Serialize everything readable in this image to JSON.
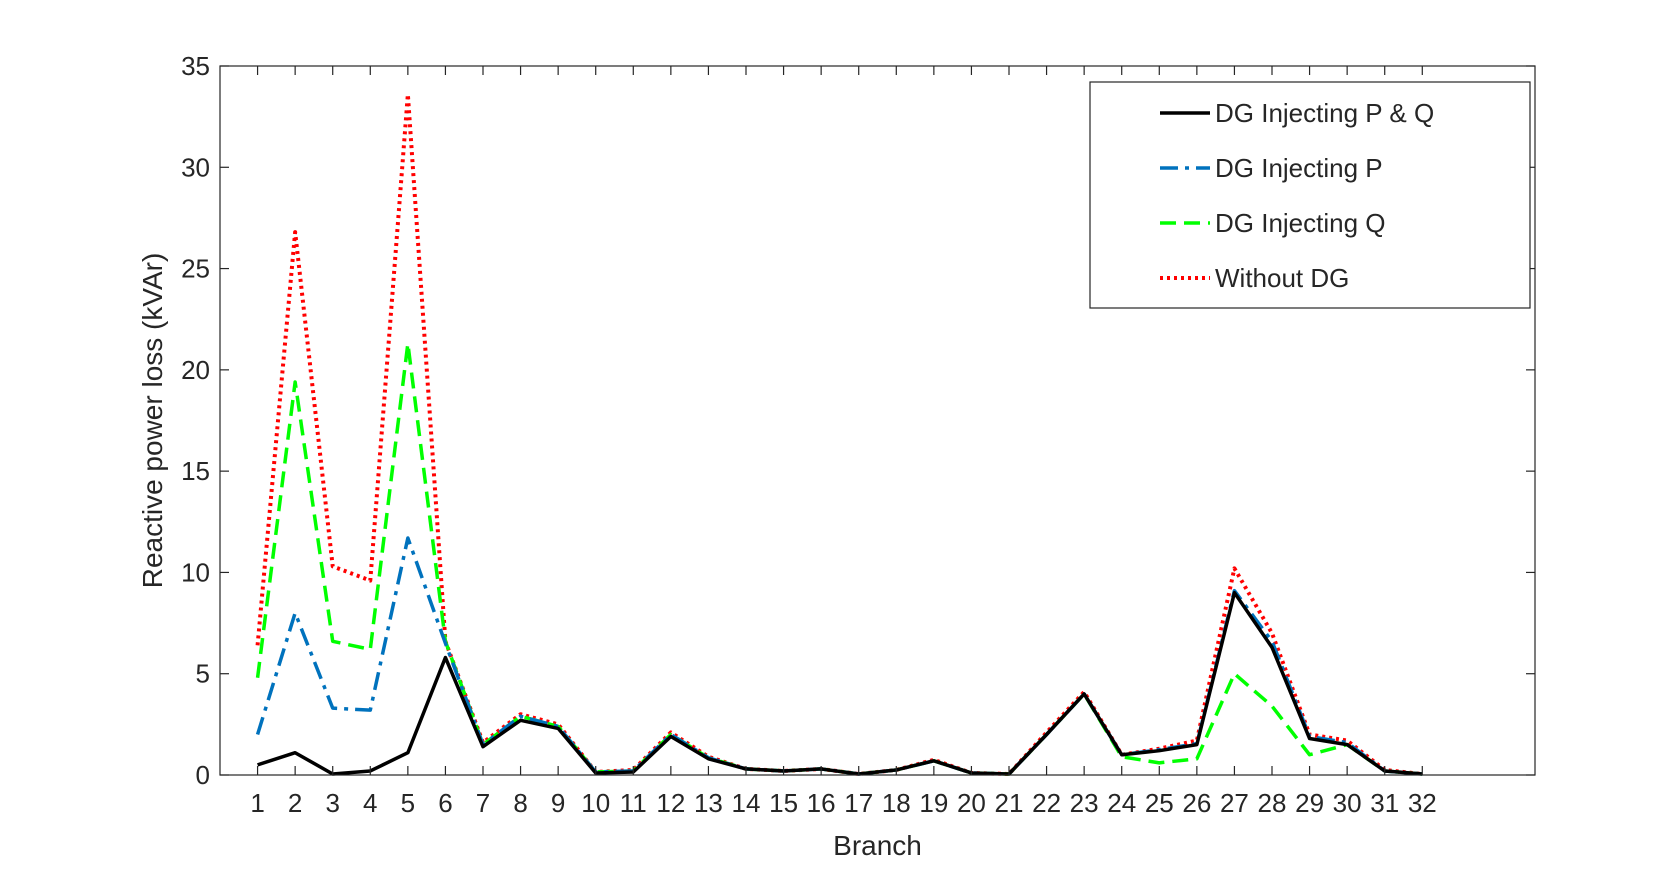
{
  "chart_data": {
    "type": "line",
    "title": "",
    "xlabel": "Branch",
    "ylabel": "Reactive power loss (kVAr)",
    "xlim": [
      0,
      35
    ],
    "ylim": [
      0,
      35
    ],
    "yticks": [
      0,
      5,
      10,
      15,
      20,
      25,
      30,
      35
    ],
    "x": [
      1,
      2,
      3,
      4,
      5,
      6,
      7,
      8,
      9,
      10,
      11,
      12,
      13,
      14,
      15,
      16,
      17,
      18,
      19,
      20,
      21,
      22,
      23,
      24,
      25,
      26,
      27,
      28,
      29,
      30,
      31,
      32
    ],
    "grid": false,
    "legend_position": "top-right",
    "series": [
      {
        "name": "DG Injecting P & Q",
        "color": "#000000",
        "style": "solid",
        "values": [
          0.5,
          1.1,
          0.05,
          0.2,
          1.1,
          5.8,
          1.4,
          2.7,
          2.3,
          0.1,
          0.15,
          1.9,
          0.8,
          0.3,
          0.2,
          0.3,
          0.05,
          0.25,
          0.7,
          0.1,
          0.05,
          2.0,
          4.0,
          1.0,
          1.2,
          1.5,
          9.0,
          6.3,
          1.8,
          1.5,
          0.2,
          0.05
        ]
      },
      {
        "name": "DG Injecting P",
        "color": "#0072BD",
        "style": "dashdot",
        "values": [
          2.0,
          8.0,
          3.3,
          3.2,
          11.7,
          6.5,
          1.5,
          2.9,
          2.4,
          0.15,
          0.2,
          2.0,
          0.85,
          0.3,
          0.2,
          0.3,
          0.05,
          0.25,
          0.7,
          0.1,
          0.05,
          2.0,
          4.0,
          1.0,
          1.25,
          1.55,
          9.1,
          6.6,
          1.9,
          1.6,
          0.2,
          0.05
        ]
      },
      {
        "name": "DG Injecting Q",
        "color": "#00FF00",
        "style": "dashed",
        "values": [
          4.8,
          19.4,
          6.6,
          6.2,
          21.3,
          6.6,
          1.5,
          2.9,
          2.4,
          0.15,
          0.2,
          2.0,
          0.85,
          0.3,
          0.2,
          0.3,
          0.05,
          0.25,
          0.7,
          0.1,
          0.05,
          2.0,
          4.0,
          0.9,
          0.6,
          0.8,
          5.0,
          3.4,
          1.0,
          1.5,
          0.2,
          0.05
        ]
      },
      {
        "name": "Without DG",
        "color": "#FF0000",
        "style": "dotted",
        "values": [
          6.4,
          26.8,
          10.3,
          9.6,
          33.6,
          6.6,
          1.6,
          3.0,
          2.5,
          0.15,
          0.25,
          2.1,
          0.9,
          0.3,
          0.2,
          0.3,
          0.05,
          0.25,
          0.75,
          0.1,
          0.05,
          2.1,
          4.1,
          1.0,
          1.3,
          1.7,
          10.2,
          7.0,
          2.0,
          1.7,
          0.25,
          0.05
        ]
      }
    ]
  }
}
